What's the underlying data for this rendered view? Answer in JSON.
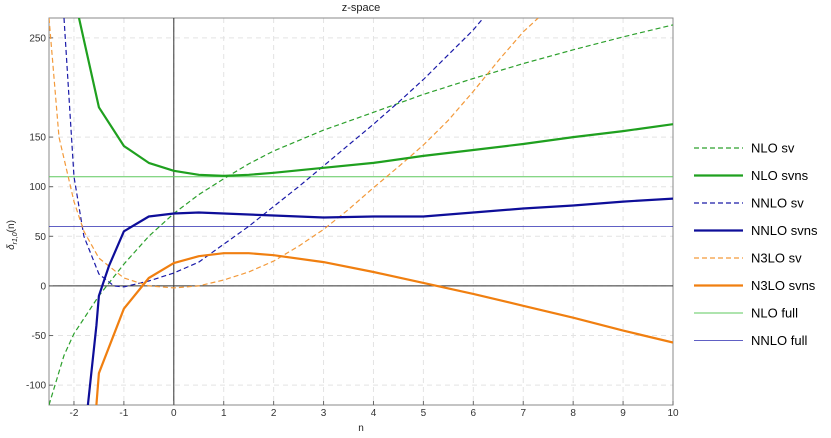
{
  "chart_data": {
    "type": "line",
    "title": "z-space",
    "xlabel": "n",
    "ylabel": "δ_{r_{1,0}}(n)",
    "xlim": [
      -2.5,
      10
    ],
    "ylim": [
      -120,
      270
    ],
    "x_ticks": [
      -2,
      -1,
      0,
      1,
      2,
      3,
      4,
      5,
      6,
      7,
      8,
      9,
      10
    ],
    "y_ticks": [
      -100,
      -50,
      0,
      50,
      100,
      150,
      250
    ],
    "grid": true,
    "legend_position": "right",
    "series": [
      {
        "name": "NLO sv",
        "color": "#2ca02c",
        "style": "dashed",
        "width": 1.2,
        "points": [
          [
            -2.5,
            -120
          ],
          [
            -2.2,
            -70
          ],
          [
            -2,
            -48
          ],
          [
            -1.5,
            -10
          ],
          [
            -1,
            22
          ],
          [
            -0.5,
            50
          ],
          [
            0,
            73
          ],
          [
            0.5,
            92
          ],
          [
            1,
            108
          ],
          [
            1.5,
            123
          ],
          [
            2,
            136
          ],
          [
            3,
            157
          ],
          [
            4,
            175
          ],
          [
            5,
            193
          ],
          [
            6,
            209
          ],
          [
            7,
            224
          ],
          [
            8,
            238
          ],
          [
            9,
            251
          ],
          [
            10,
            263
          ]
        ]
      },
      {
        "name": "NLO svns",
        "color": "#1fa01f",
        "style": "solid",
        "width": 2.2,
        "points": [
          [
            -1.9,
            270
          ],
          [
            -1.5,
            180
          ],
          [
            -1,
            141
          ],
          [
            -0.5,
            124
          ],
          [
            0,
            116
          ],
          [
            0.5,
            112
          ],
          [
            1,
            111
          ],
          [
            1.5,
            112
          ],
          [
            2,
            114
          ],
          [
            3,
            119
          ],
          [
            4,
            124
          ],
          [
            5,
            131
          ],
          [
            6,
            137
          ],
          [
            7,
            143
          ],
          [
            8,
            150
          ],
          [
            9,
            156
          ],
          [
            10,
            163
          ]
        ]
      },
      {
        "name": "NNLO sv",
        "color": "#1a1aa8",
        "style": "dashed",
        "width": 1.2,
        "points": [
          [
            -2.2,
            270
          ],
          [
            -2,
            110
          ],
          [
            -1.8,
            50
          ],
          [
            -1.5,
            12
          ],
          [
            -1.2,
            0
          ],
          [
            -1,
            -1
          ],
          [
            -0.5,
            5
          ],
          [
            0,
            13
          ],
          [
            0.5,
            24
          ],
          [
            1,
            42
          ],
          [
            1.5,
            60
          ],
          [
            2,
            80
          ],
          [
            2.5,
            100
          ],
          [
            3,
            121
          ],
          [
            3.5,
            142
          ],
          [
            4,
            163
          ],
          [
            4.5,
            185
          ],
          [
            5,
            208
          ],
          [
            5.5,
            233
          ],
          [
            6,
            258
          ],
          [
            6.2,
            270
          ]
        ]
      },
      {
        "name": "NNLO svns",
        "color": "#0e0e99",
        "style": "solid",
        "width": 2.2,
        "points": [
          [
            -1.72,
            -120
          ],
          [
            -1.55,
            -40
          ],
          [
            -1.5,
            -10
          ],
          [
            -1.3,
            20
          ],
          [
            -1,
            55
          ],
          [
            -0.5,
            70
          ],
          [
            0,
            73
          ],
          [
            0.5,
            74
          ],
          [
            1,
            73
          ],
          [
            2,
            71
          ],
          [
            3,
            69
          ],
          [
            4,
            70
          ],
          [
            5,
            70
          ],
          [
            6,
            74
          ],
          [
            7,
            78
          ],
          [
            8,
            81
          ],
          [
            9,
            85
          ],
          [
            10,
            88
          ]
        ]
      },
      {
        "name": "N3LO sv",
        "color": "#f39a3b",
        "style": "dashed",
        "width": 1.2,
        "points": [
          [
            -2.5,
            270
          ],
          [
            -2.3,
            150
          ],
          [
            -2,
            85
          ],
          [
            -1.8,
            55
          ],
          [
            -1.5,
            28
          ],
          [
            -1,
            8
          ],
          [
            -0.5,
            0
          ],
          [
            0,
            -2
          ],
          [
            0.5,
            0
          ],
          [
            1,
            6
          ],
          [
            1.5,
            14
          ],
          [
            2,
            25
          ],
          [
            2.5,
            40
          ],
          [
            3,
            57
          ],
          [
            3.5,
            77
          ],
          [
            4,
            99
          ],
          [
            4.5,
            120
          ],
          [
            5,
            142
          ],
          [
            5.5,
            167
          ],
          [
            6,
            196
          ],
          [
            6.5,
            227
          ],
          [
            7,
            256
          ],
          [
            7.3,
            270
          ]
        ]
      },
      {
        "name": "N3LO svns",
        "color": "#f07f10",
        "style": "solid",
        "width": 2.2,
        "points": [
          [
            -1.55,
            -120
          ],
          [
            -1.5,
            -88
          ],
          [
            -1,
            -23
          ],
          [
            -0.5,
            8
          ],
          [
            0,
            23
          ],
          [
            0.5,
            30
          ],
          [
            1,
            33
          ],
          [
            1.5,
            33
          ],
          [
            2,
            31
          ],
          [
            3,
            24
          ],
          [
            4,
            14
          ],
          [
            5,
            3
          ],
          [
            6,
            -8
          ],
          [
            7,
            -20
          ],
          [
            8,
            -32
          ],
          [
            9,
            -45
          ],
          [
            10,
            -57
          ]
        ]
      },
      {
        "name": "NLO full",
        "color": "#5ec95e",
        "style": "solid",
        "width": 1,
        "hline": 110
      },
      {
        "name": "NNLO full",
        "color": "#2b2bb0",
        "style": "solid",
        "width": 0.8,
        "hline": 60
      }
    ]
  }
}
